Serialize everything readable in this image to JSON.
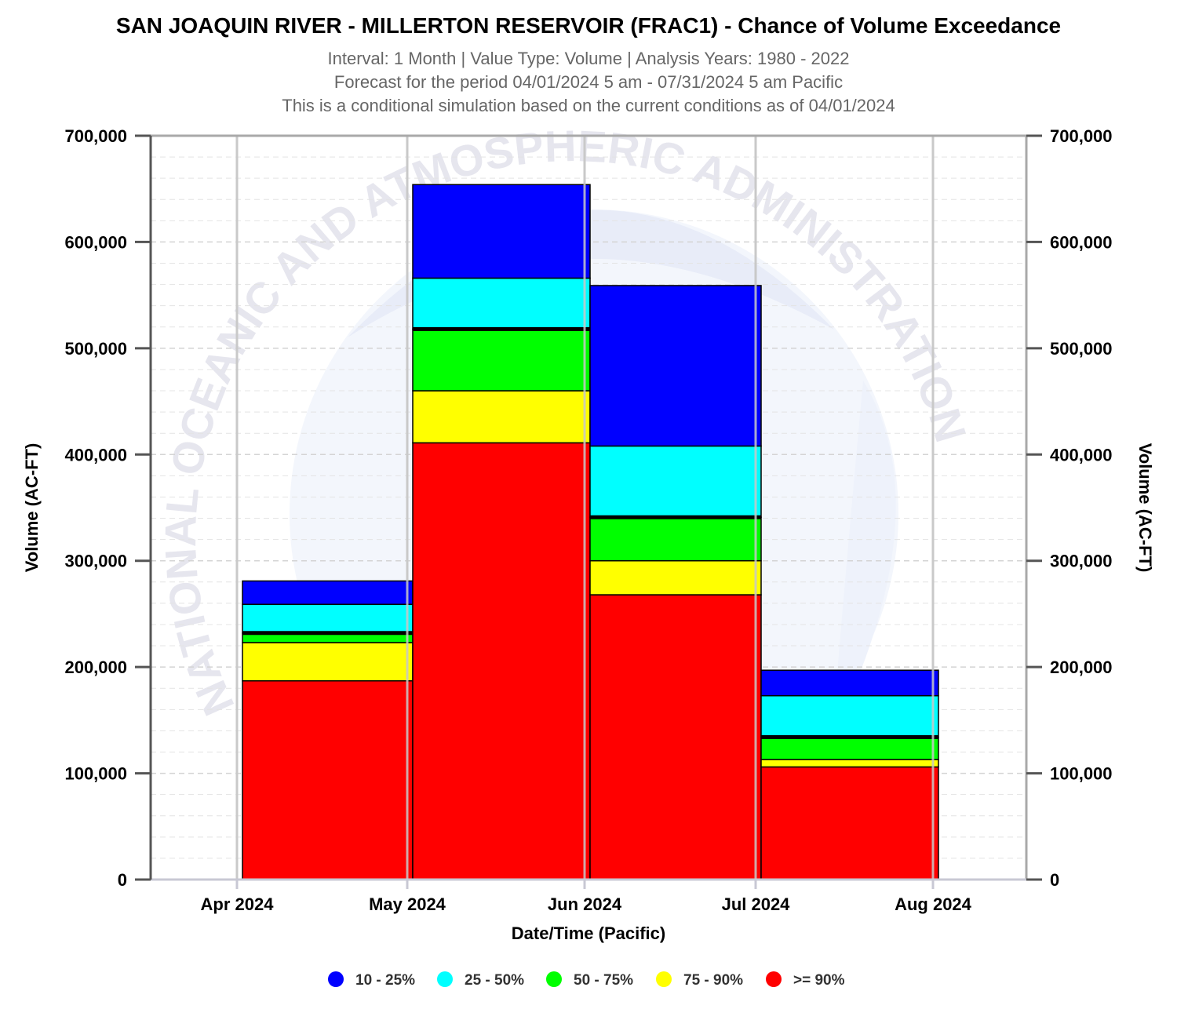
{
  "chart_data": {
    "type": "bar",
    "stacked": true,
    "title": "SAN JOAQUIN RIVER - MILLERTON RESERVOIR (FRAC1) - Chance of Volume Exceedance",
    "subtitles": [
      "Interval: 1 Month | Value Type: Volume | Analysis Years: 1980 - 2022",
      "Forecast for the period 04/01/2024 5 am - 07/31/2024 5 am Pacific",
      "This is a conditional simulation based on the current conditions as of 04/01/2024"
    ],
    "xlabel": "Date/Time (Pacific)",
    "ylabel": "Volume (AC-FT)",
    "ylabel_right": "Volume (AC-FT)",
    "ylim": [
      0,
      700000
    ],
    "y_ticks": [
      "0",
      "100,000",
      "200,000",
      "300,000",
      "400,000",
      "500,000",
      "600,000",
      "700,000"
    ],
    "x_ticks": [
      "Apr 2024",
      "May 2024",
      "Jun 2024",
      "Jul 2024",
      "Aug 2024"
    ],
    "categories": [
      "Apr 2024",
      "May 2024",
      "Jun 2024",
      "Jul 2024"
    ],
    "median_values": [
      232000,
      518000,
      341000,
      134000
    ],
    "series": [
      {
        "name": ">= 90%",
        "color": "#ff0000",
        "top_values": [
          187000,
          411000,
          268000,
          106000
        ]
      },
      {
        "name": "75 - 90%",
        "color": "#ffff00",
        "top_values": [
          223000,
          460000,
          300000,
          113000
        ]
      },
      {
        "name": "50 - 75%",
        "color": "#00ff00",
        "top_values": [
          232000,
          518000,
          341000,
          134000
        ]
      },
      {
        "name": "25 - 50%",
        "color": "#00ffff",
        "top_values": [
          259000,
          566000,
          408000,
          173000
        ]
      },
      {
        "name": "10 - 25%",
        "color": "#0000ff",
        "top_values": [
          281000,
          654000,
          559000,
          197000
        ]
      }
    ],
    "legend": [
      {
        "label": "10 - 25%",
        "color": "#0000ff"
      },
      {
        "label": "25 - 50%",
        "color": "#00ffff"
      },
      {
        "label": "50 - 75%",
        "color": "#00ff00"
      },
      {
        "label": "75 - 90%",
        "color": "#ffff00"
      },
      {
        "label": ">= 90%",
        "color": "#ff0000"
      }
    ],
    "legend_position": "bottom-center",
    "grid": true
  },
  "watermark": {
    "text": "NATIONAL OCEANIC AND ATMOSPHERIC ADMINISTRATION"
  }
}
